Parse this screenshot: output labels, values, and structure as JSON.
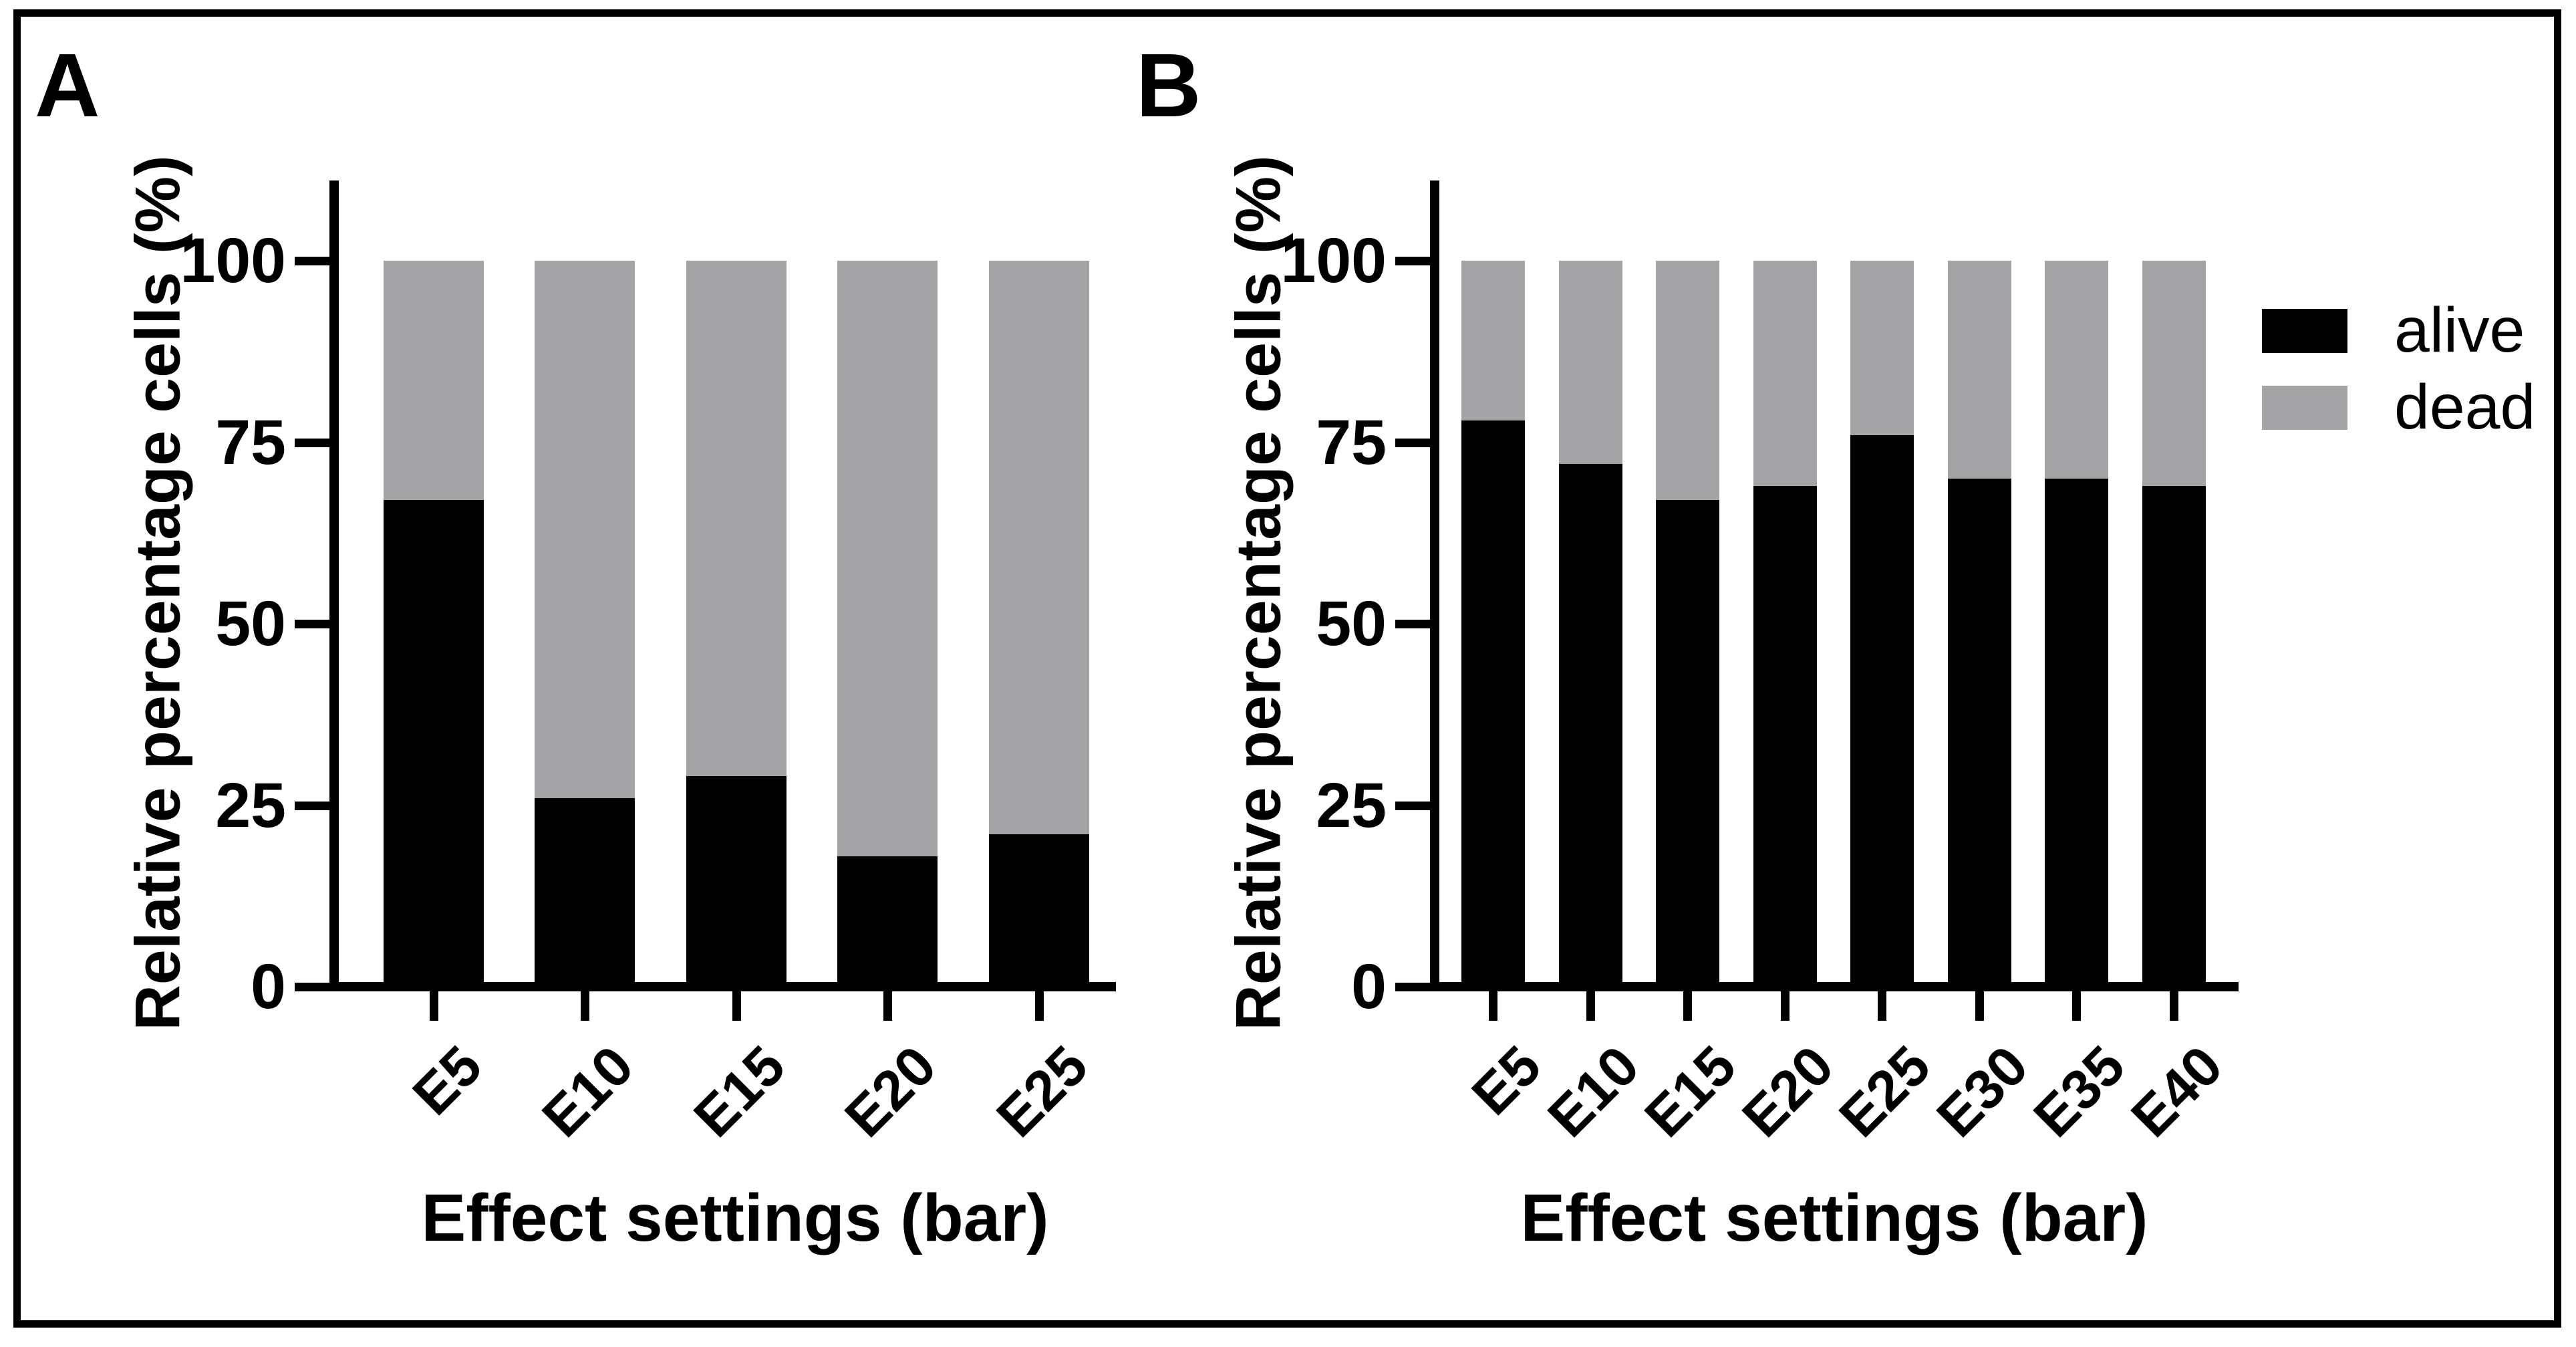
{
  "figure": {
    "background_color": "#ffffff",
    "border_color": "#000000",
    "alive_color": "#000000",
    "dead_color": "#a4a4a6"
  },
  "legend": {
    "position": "right",
    "items": [
      {
        "label": "alive",
        "color": "#000000"
      },
      {
        "label": "dead",
        "color": "#a4a4a6"
      }
    ]
  },
  "chart_data": [
    {
      "type": "bar",
      "stacked": true,
      "panel_label": "A",
      "categories": [
        "E5",
        "E10",
        "E15",
        "E20",
        "E25"
      ],
      "series": [
        {
          "name": "alive",
          "color": "#000000",
          "values": [
            67,
            26,
            29,
            18,
            21
          ]
        },
        {
          "name": "dead",
          "color": "#a4a4a6",
          "values": [
            33,
            74,
            71,
            82,
            79
          ]
        }
      ],
      "ylabel": "Relative percentage cells (%)",
      "xlabel": "Effect settings (bar)",
      "y_ticks": [
        0,
        25,
        50,
        75,
        100
      ],
      "ylim": [
        0,
        100
      ],
      "grid": false,
      "x_tick_rotation_deg": 45
    },
    {
      "type": "bar",
      "stacked": true,
      "panel_label": "B",
      "categories": [
        "E5",
        "E10",
        "E15",
        "E20",
        "E25",
        "E30",
        "E35",
        "E40"
      ],
      "series": [
        {
          "name": "alive",
          "color": "#000000",
          "values": [
            78,
            72,
            67,
            69,
            76,
            70,
            70,
            69
          ]
        },
        {
          "name": "dead",
          "color": "#a4a4a6",
          "values": [
            22,
            28,
            33,
            31,
            24,
            30,
            30,
            31
          ]
        }
      ],
      "ylabel": "Relative percentage cells (%)",
      "xlabel": "Effect settings (bar)",
      "y_ticks": [
        0,
        25,
        50,
        75,
        100
      ],
      "ylim": [
        0,
        100
      ],
      "grid": false,
      "x_tick_rotation_deg": 45
    }
  ]
}
